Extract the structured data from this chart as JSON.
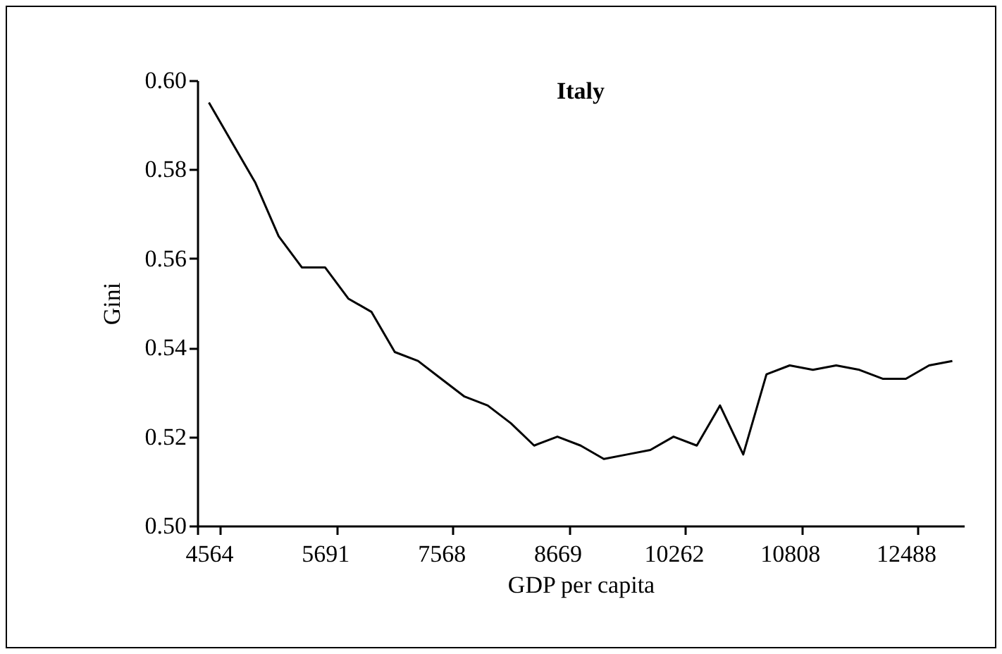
{
  "chart_data": {
    "type": "line",
    "title": "Italy",
    "xlabel": "GDP per capita",
    "ylabel": "Gini",
    "categories": [
      "4564",
      null,
      null,
      null,
      null,
      "5691",
      null,
      null,
      null,
      null,
      "7568",
      null,
      null,
      null,
      null,
      "8669",
      null,
      null,
      null,
      null,
      "10262",
      null,
      null,
      null,
      null,
      "10808",
      null,
      null,
      null,
      null,
      "12488",
      null,
      null
    ],
    "series": [
      {
        "color": "#000000",
        "values": [
          0.595,
          0.586,
          0.577,
          0.565,
          0.558,
          0.558,
          0.551,
          0.548,
          0.539,
          0.537,
          0.533,
          0.529,
          0.527,
          0.523,
          0.518,
          0.52,
          0.518,
          0.515,
          0.516,
          0.517,
          0.52,
          0.518,
          0.527,
          0.516,
          0.534,
          0.536,
          0.535,
          0.536,
          0.535,
          0.533,
          0.533,
          0.536,
          0.537
        ]
      }
    ],
    "ylim": [
      0.5,
      0.6
    ],
    "yticks": [
      {
        "value": 0.5,
        "label": "0.50"
      },
      {
        "value": 0.52,
        "label": "0.52"
      },
      {
        "value": 0.54,
        "label": "0.54"
      },
      {
        "value": 0.56,
        "label": "0.56"
      },
      {
        "value": 0.58,
        "label": "0.58"
      },
      {
        "value": 0.6,
        "label": "0.60"
      }
    ],
    "grid": false,
    "marker": "none",
    "line_style": "solid"
  }
}
